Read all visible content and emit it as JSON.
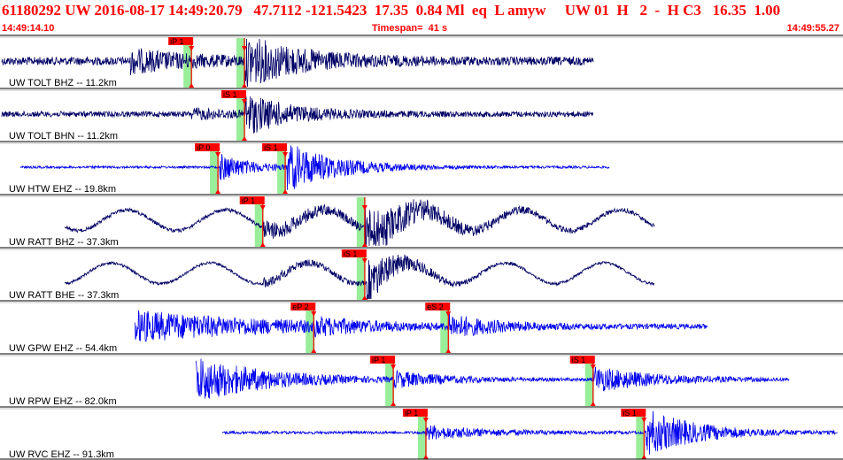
{
  "header": {
    "title": "61180292 UW 2016-08-17 14:49:20.79   47.7112 -121.5423  17.35  0.84 Ml  eq  L amyw     UW 01  H   2  -  H C3   16.35  1.00",
    "start_time": "14:49:14.10",
    "timespan": "Timespan=  41 s",
    "end_time": "14:49:55.27"
  },
  "colors": {
    "header_text": "#ff0000",
    "trace_dark": "#000066",
    "trace_blue": "#0000ee",
    "pick_marker": "#ff0000",
    "pick_band": "#99ee99",
    "panel_border": "#000000"
  },
  "channels": [
    {
      "label": "UW TOLT BHZ -- 11.2km",
      "color": "dark",
      "picks": [
        {
          "label": "iP 1",
          "time_s": 9.3
        },
        {
          "label": "",
          "time_s": 11.9
        }
      ],
      "signal": {
        "start_s": 0.0,
        "end_s": 29.0,
        "base_amp": 0.18,
        "bursts": [
          {
            "at_s": 6.3,
            "amp": 0.45,
            "decay_s": 3.0
          },
          {
            "at_s": 11.9,
            "amp": 1.0,
            "decay_s": 2.8
          }
        ],
        "noise": "high",
        "wobble": false
      }
    },
    {
      "label": "UW TOLT BHN -- 11.2km",
      "color": "dark",
      "picks": [
        {
          "label": "iS 1",
          "time_s": 11.9
        }
      ],
      "signal": {
        "start_s": 0.0,
        "end_s": 29.0,
        "base_amp": 0.12,
        "bursts": [
          {
            "at_s": 9.3,
            "amp": 0.2,
            "decay_s": 2.0
          },
          {
            "at_s": 11.9,
            "amp": 0.85,
            "decay_s": 2.2
          }
        ],
        "noise": "high",
        "wobble": false
      }
    },
    {
      "label": "UW HTW EHZ -- 19.8km",
      "color": "blue",
      "picks": [
        {
          "label": "iP 0",
          "time_s": 10.6
        },
        {
          "label": "iS 1",
          "time_s": 13.9
        }
      ],
      "signal": {
        "start_s": 0.9,
        "end_s": 29.8,
        "base_amp": 0.05,
        "bursts": [
          {
            "at_s": 10.7,
            "amp": 0.6,
            "decay_s": 1.5
          },
          {
            "at_s": 14.0,
            "amp": 1.0,
            "decay_s": 2.5
          }
        ],
        "noise": "high",
        "wobble": false
      }
    },
    {
      "label": "UW RATT BHZ -- 37.3km",
      "color": "dark",
      "picks": [
        {
          "label": "iP 1",
          "time_s": 12.8
        },
        {
          "label": "",
          "time_s": 17.8
        }
      ],
      "signal": {
        "start_s": 3.1,
        "end_s": 32.0,
        "base_amp": 0.08,
        "bursts": [
          {
            "at_s": 12.8,
            "amp": 0.35,
            "decay_s": 4.0
          },
          {
            "at_s": 17.8,
            "amp": 0.9,
            "decay_s": 3.0
          }
        ],
        "noise": "high",
        "wobble": true
      }
    },
    {
      "label": "UW RATT BHE -- 37.3km",
      "color": "dark",
      "picks": [
        {
          "label": "iS 1",
          "time_s": 17.8
        }
      ],
      "signal": {
        "start_s": 3.1,
        "end_s": 32.0,
        "base_amp": 0.06,
        "bursts": [
          {
            "at_s": 12.8,
            "amp": 0.2,
            "decay_s": 3.0
          },
          {
            "at_s": 17.9,
            "amp": 0.95,
            "decay_s": 1.6
          }
        ],
        "noise": "high",
        "wobble": true
      }
    },
    {
      "label": "UW GPW EHZ -- 54.4km",
      "color": "blue",
      "picks": [
        {
          "label": "eP 2",
          "time_s": 15.3
        },
        {
          "label": "eS 2",
          "time_s": 21.9
        }
      ],
      "signal": {
        "start_s": 6.5,
        "end_s": 34.6,
        "base_amp": 0.1,
        "bursts": [
          {
            "at_s": 6.5,
            "amp": 0.65,
            "decay_s": 6.5
          },
          {
            "at_s": 15.3,
            "amp": 0.25,
            "decay_s": 2.0
          },
          {
            "at_s": 21.9,
            "amp": 0.45,
            "decay_s": 2.0
          }
        ],
        "noise": "high",
        "wobble": false
      }
    },
    {
      "label": "UW RPW EHZ -- 82.0km",
      "color": "blue",
      "picks": [
        {
          "label": "iP 1",
          "time_s": 19.2
        },
        {
          "label": "iS 1",
          "time_s": 29.0
        }
      ],
      "signal": {
        "start_s": 9.5,
        "end_s": 38.6,
        "base_amp": 0.06,
        "bursts": [
          {
            "at_s": 9.5,
            "amp": 1.0,
            "decay_s": 3.5
          },
          {
            "at_s": 19.2,
            "amp": 0.3,
            "decay_s": 2.5
          },
          {
            "at_s": 29.0,
            "amp": 0.55,
            "decay_s": 3.0
          }
        ],
        "noise": "high",
        "wobble": false
      }
    },
    {
      "label": "UW RVC EHZ -- 91.3km",
      "color": "blue",
      "picks": [
        {
          "label": "iP 1",
          "time_s": 20.8
        },
        {
          "label": "iS 1",
          "time_s": 31.5
        }
      ],
      "signal": {
        "start_s": 10.8,
        "end_s": 41.0,
        "base_amp": 0.06,
        "bursts": [
          {
            "at_s": 20.8,
            "amp": 0.3,
            "decay_s": 3.0
          },
          {
            "at_s": 31.6,
            "amp": 1.0,
            "decay_s": 2.5
          }
        ],
        "noise": "high",
        "wobble": false
      }
    }
  ]
}
